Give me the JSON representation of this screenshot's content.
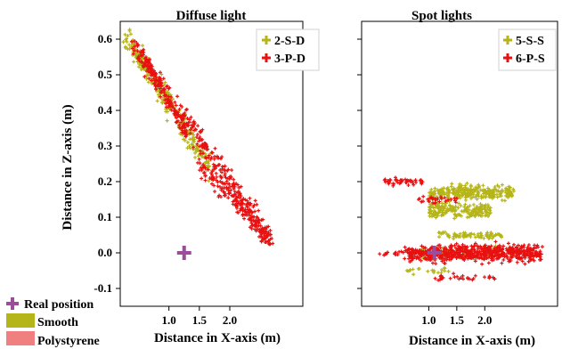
{
  "chart_data": [
    {
      "type": "scatter",
      "title": "Diffuse light",
      "xlabel": "Distance in X-axis (m)",
      "ylabel": "Distance in Z-axis (m)",
      "xticks": [
        1.0,
        1.5,
        2.0
      ],
      "xtick_labels": [
        "1.0",
        "1.5",
        "2.0"
      ],
      "yticks": [
        -0.1,
        0.0,
        0.1,
        0.2,
        0.3,
        0.4,
        0.5,
        0.6
      ],
      "ytick_labels": [
        "-0.1",
        "0.0",
        "0.1",
        "0.2",
        "0.3",
        "0.4",
        "0.5",
        "0.6"
      ],
      "xlim": [
        0.2,
        3.2
      ],
      "ylim": [
        -0.15,
        0.65
      ],
      "legend_position": "top-right",
      "series": [
        {
          "name": "2-S-D",
          "color": "#b5b51a",
          "marker": "plus",
          "clusters": [
            {
              "x1": 0.32,
              "y1": 0.6,
              "x2": 1.7,
              "y2": 0.23,
              "width": 0.05,
              "count": 230
            },
            {
              "x1": 0.4,
              "y1": 0.58,
              "x2": 1.05,
              "y2": 0.42,
              "width": 0.03,
              "count": 80
            }
          ]
        },
        {
          "name": "3-P-D",
          "color": "#e81010",
          "marker": "plus",
          "clusters": [
            {
              "x1": 0.42,
              "y1": 0.58,
              "x2": 2.6,
              "y2": 0.05,
              "width": 0.05,
              "count": 380
            },
            {
              "x1": 0.6,
              "y1": 0.55,
              "x2": 1.3,
              "y2": 0.33,
              "width": 0.025,
              "count": 90
            },
            {
              "x1": 1.5,
              "y1": 0.25,
              "x2": 2.7,
              "y2": 0.03,
              "width": 0.04,
              "count": 140
            }
          ]
        }
      ],
      "marker_point": {
        "x": 1.25,
        "y": 0.0,
        "color": "#9b4d9b"
      }
    },
    {
      "type": "scatter",
      "title": "Spot lights",
      "xlabel": "Distance in X-axis (m)",
      "ylabel": "",
      "xticks": [
        1.0,
        1.5,
        2.0
      ],
      "xtick_labels": [
        "1.0",
        "1.5",
        "2.0"
      ],
      "xlim": [
        -0.2,
        3.3
      ],
      "ylim": [
        -0.15,
        0.65
      ],
      "legend_position": "top-right",
      "series": [
        {
          "name": "5-S-S",
          "color": "#b5b51a",
          "marker": "plus",
          "clusters": [
            {
              "x1": 1.0,
              "y1": 0.17,
              "x2": 2.5,
              "y2": 0.17,
              "width": 0.03,
              "count": 260
            },
            {
              "x1": 1.0,
              "y1": 0.12,
              "x2": 2.1,
              "y2": 0.12,
              "width": 0.03,
              "count": 200
            },
            {
              "x1": 1.2,
              "y1": 0.05,
              "x2": 2.3,
              "y2": 0.05,
              "width": 0.015,
              "count": 80
            },
            {
              "x1": 0.85,
              "y1": 0.0,
              "x2": 2.5,
              "y2": 0.0,
              "width": 0.025,
              "count": 80
            },
            {
              "x1": 0.6,
              "y1": -0.05,
              "x2": 1.4,
              "y2": -0.05,
              "width": 0.02,
              "count": 20
            }
          ]
        },
        {
          "name": "6-P-S",
          "color": "#e81010",
          "marker": "plus",
          "clusters": [
            {
              "x1": 0.6,
              "y1": 0.0,
              "x2": 3.0,
              "y2": 0.0,
              "width": 0.035,
              "count": 620
            },
            {
              "x1": 0.2,
              "y1": 0.2,
              "x2": 0.9,
              "y2": 0.2,
              "width": 0.015,
              "count": 45
            },
            {
              "x1": 0.8,
              "y1": 0.15,
              "x2": 1.5,
              "y2": 0.15,
              "width": 0.02,
              "count": 30
            },
            {
              "x1": 1.1,
              "y1": -0.07,
              "x2": 2.2,
              "y2": -0.07,
              "width": 0.015,
              "count": 30
            },
            {
              "x1": 0.1,
              "y1": 0.0,
              "x2": 0.9,
              "y2": 0.0,
              "width": 0.01,
              "count": 25
            }
          ]
        }
      ],
      "marker_point": {
        "x": 1.1,
        "y": 0.0,
        "color": "#9b4d9b"
      }
    }
  ],
  "bottom_legend": [
    {
      "label": "Real position",
      "type": "plus",
      "color": "#9b4d9b"
    },
    {
      "label": "Smooth",
      "type": "swatch",
      "color": "#b5b51a"
    },
    {
      "label": "Polystyrene",
      "type": "swatch",
      "color": "#f08080"
    }
  ]
}
